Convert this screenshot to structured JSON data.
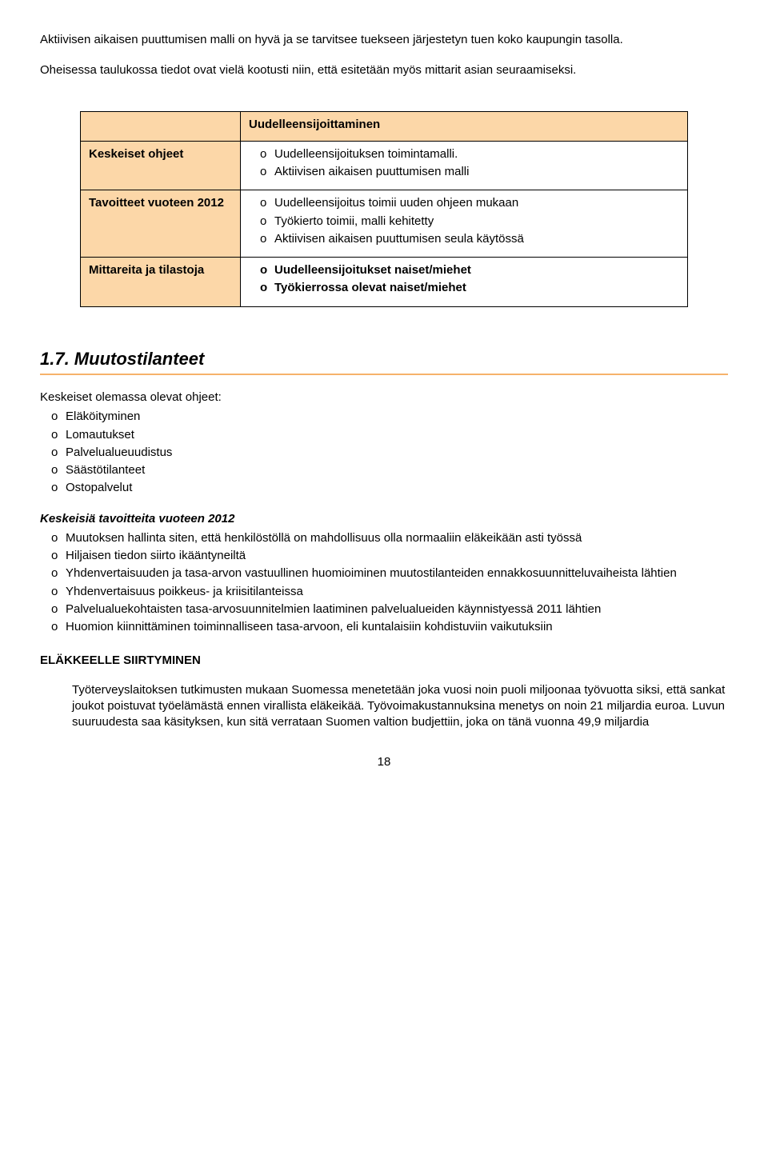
{
  "intro_p1": "Aktiivisen aikaisen puuttumisen malli on hyvä ja se tarvitsee tuekseen järjestetyn tuen koko kaupungin tasolla.",
  "intro_p2": "Oheisessa taulukossa tiedot ovat vielä kootusti niin, että esitetään myös mittarit asian seuraamiseksi.",
  "table": {
    "header": "Uudelleensijoittaminen",
    "rows": [
      {
        "label": "Keskeiset ohjeet",
        "items": [
          {
            "text": "Uudelleensijoituksen toimintamalli.",
            "bold": false
          },
          {
            "text": "Aktiivisen aikaisen puuttumisen malli",
            "bold": false
          }
        ]
      },
      {
        "label": "Tavoitteet vuoteen 2012",
        "items": [
          {
            "text": "Uudelleensijoitus toimii uuden ohjeen mukaan",
            "bold": false
          },
          {
            "text": "Työkierto toimii, malli kehitetty",
            "bold": false
          },
          {
            "text": "Aktiivisen aikaisen puuttumisen seula käytössä",
            "bold": false
          }
        ]
      },
      {
        "label": "Mittareita ja tilastoja",
        "items": [
          {
            "text": "Uudelleensijoitukset naiset/miehet",
            "bold": true
          },
          {
            "text": "Työkierrossa olevat naiset/miehet",
            "bold": true
          }
        ]
      }
    ]
  },
  "section_title": "1.7. Muutostilanteet",
  "block1": {
    "head": "Keskeiset olemassa olevat ohjeet:",
    "items": [
      "Eläköityminen",
      "Lomautukset",
      "Palvelualueuudistus",
      "Säästötilanteet",
      "Ostopalvelut"
    ]
  },
  "block2": {
    "head": "Keskeisiä tavoitteita vuoteen 2012",
    "items": [
      "Muutoksen hallinta siten, että henkilöstöllä on mahdollisuus olla normaaliin eläkeikään asti työssä",
      "Hiljaisen tiedon siirto ikääntyneiltä",
      "Yhdenvertaisuuden ja tasa-arvon vastuullinen huomioiminen muutostilanteiden ennakkosuunnitteluvaiheista lähtien",
      "Yhdenvertaisuus poikkeus- ja kriisitilanteissa",
      "Palvelualuekohtaisten tasa-arvosuunnitelmien laatiminen palvelualueiden käynnistyessä 2011 lähtien",
      "Huomion kiinnittäminen toiminnalliseen tasa-arvoon, eli kuntalaisiin kohdistuviin vaikutuksiin"
    ]
  },
  "subhead": "ELÄKKEELLE SIIRTYMINEN",
  "body_para": "Työterveyslaitoksen tutkimusten mukaan Suomessa menetetään joka vuosi noin puoli miljoonaa työvuotta siksi, että sankat joukot poistuvat työelämästä ennen virallista eläkeikää. Työvoimakustannuksina menetys on noin 21 miljardia euroa. Luvun suuruudesta saa käsityksen, kun sitä verrataan Suomen valtion budjettiin, joka on tänä vuonna 49,9 miljardia",
  "page_number": "18",
  "colors": {
    "table_bg": "#fcd7a8",
    "rule": "#f6b26b"
  }
}
